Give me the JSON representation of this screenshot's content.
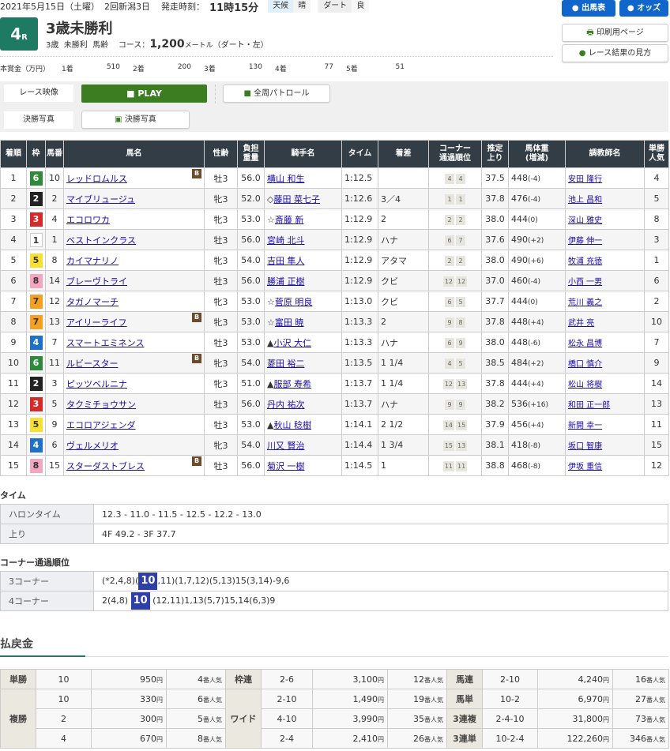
{
  "header": {
    "date": "2021年5月15日（土曜）",
    "meeting": "2回新潟3日",
    "post_label": "発走時刻：",
    "post_time": "11時15分",
    "weather_label": "天候",
    "weather": "晴",
    "surface_label": "ダート",
    "condition": "良",
    "race_no": "4",
    "race_suffix": "R",
    "race_name": "3歳未勝利",
    "age": "3歳",
    "class": "未勝利",
    "weight_rule": "馬齢",
    "course_label": "コース：",
    "distance": "1,200",
    "distance_unit": "メートル",
    "course_detail": "（ダート・左）"
  },
  "prize": {
    "label": "本賞金（万円）",
    "items": [
      {
        "place": "1着",
        "amount": "510"
      },
      {
        "place": "2着",
        "amount": "200"
      },
      {
        "place": "3着",
        "amount": "130"
      },
      {
        "place": "4着",
        "amount": "77"
      },
      {
        "place": "5着",
        "amount": "51"
      }
    ]
  },
  "nav": {
    "entries": "出馬表",
    "odds": "オッズ",
    "print": "印刷用ページ",
    "guide": "レース結果の見方"
  },
  "media": {
    "video_label": "レース映像",
    "play": "PLAY",
    "patrol": "全周パトロール",
    "photo_label": "決勝写真",
    "photo": "決勝写真"
  },
  "colors": {
    "accent": "#1e7a62",
    "header_bg": "#333d45",
    "play": "#3c7d22",
    "nav": "#1166cc",
    "highlight": "#2f3fa8"
  },
  "waku_colors": {
    "1": [
      "#ffffff",
      "#333"
    ],
    "2": [
      "#222222",
      "#fff"
    ],
    "3": [
      "#d42a2a",
      "#fff"
    ],
    "4": [
      "#1e70c8",
      "#fff"
    ],
    "5": [
      "#f8e030",
      "#333"
    ],
    "6": [
      "#2e8a3a",
      "#fff"
    ],
    "7": [
      "#f5a020",
      "#333"
    ],
    "8": [
      "#f2a6c0",
      "#333"
    ]
  },
  "columns": [
    "着順",
    "枠",
    "馬番",
    "馬名",
    "性齢",
    "負担重量",
    "騎手名",
    "タイム",
    "着差",
    "コーナー通過順位",
    "推定上り",
    "馬体重(増減)",
    "調教師名",
    "単勝人気"
  ],
  "results": [
    {
      "pos": "1",
      "waku": "6",
      "num": "10",
      "horse": "レッドロムルス",
      "blinker": "B",
      "sa": "牡3",
      "wt": "56.0",
      "mark": "",
      "jockey": "横山 和生",
      "time": "1:12.5",
      "margin": "",
      "c3": "4",
      "c4": "4",
      "last": "37.5",
      "bw": "448",
      "bwd": "(-4)",
      "trainer": "安田 隆行",
      "pop": "4"
    },
    {
      "pos": "2",
      "waku": "2",
      "num": "2",
      "horse": "マイブリュージュ",
      "blinker": "",
      "sa": "牝3",
      "wt": "52.0",
      "mark": "◇",
      "jockey": "藤田 菜七子",
      "time": "1:12.6",
      "margin": "3／4",
      "c3": "1",
      "c4": "1",
      "last": "37.8",
      "bw": "476",
      "bwd": "(-4)",
      "trainer": "池上 昌和",
      "pop": "5"
    },
    {
      "pos": "3",
      "waku": "3",
      "num": "4",
      "horse": "エコロワカ",
      "blinker": "",
      "sa": "牝3",
      "wt": "53.0",
      "mark": "☆",
      "jockey": "斎藤 新",
      "time": "1:12.9",
      "margin": "2",
      "c3": "2",
      "c4": "2",
      "last": "38.0",
      "bw": "444",
      "bwd": "(0)",
      "trainer": "深山 雅史",
      "pop": "8"
    },
    {
      "pos": "4",
      "waku": "1",
      "num": "1",
      "horse": "ベストインクラス",
      "blinker": "",
      "sa": "牡3",
      "wt": "56.0",
      "mark": "",
      "jockey": "宮崎 北斗",
      "time": "1:12.9",
      "margin": "ハナ",
      "c3": "6",
      "c4": "7",
      "last": "37.6",
      "bw": "490",
      "bwd": "(+2)",
      "trainer": "伊藤 伸一",
      "pop": "3"
    },
    {
      "pos": "5",
      "waku": "5",
      "num": "8",
      "horse": "カイマナリノ",
      "blinker": "",
      "sa": "牝3",
      "wt": "54.0",
      "mark": "",
      "jockey": "吉田 隼人",
      "time": "1:12.9",
      "margin": "アタマ",
      "c3": "2",
      "c4": "2",
      "last": "38.0",
      "bw": "490",
      "bwd": "(+6)",
      "trainer": "牧浦 充徳",
      "pop": "1"
    },
    {
      "pos": "6",
      "waku": "8",
      "num": "14",
      "horse": "ブレーヴトライ",
      "blinker": "",
      "sa": "牡3",
      "wt": "56.0",
      "mark": "",
      "jockey": "勝浦 正樹",
      "time": "1:12.9",
      "margin": "クビ",
      "c3": "12",
      "c4": "12",
      "last": "37.0",
      "bw": "460",
      "bwd": "(-4)",
      "trainer": "小西 一男",
      "pop": "6"
    },
    {
      "pos": "7",
      "waku": "7",
      "num": "12",
      "horse": "タガノマーチ",
      "blinker": "",
      "sa": "牝3",
      "wt": "53.0",
      "mark": "☆",
      "jockey": "菅原 明良",
      "time": "1:13.0",
      "margin": "クビ",
      "c3": "6",
      "c4": "5",
      "last": "37.7",
      "bw": "444",
      "bwd": "(0)",
      "trainer": "荒川 義之",
      "pop": "2"
    },
    {
      "pos": "8",
      "waku": "7",
      "num": "13",
      "horse": "アイリーライフ",
      "blinker": "B",
      "sa": "牝3",
      "wt": "53.0",
      "mark": "☆",
      "jockey": "富田 暁",
      "time": "1:13.3",
      "margin": "2",
      "c3": "9",
      "c4": "8",
      "last": "37.8",
      "bw": "448",
      "bwd": "(+4)",
      "trainer": "武井 亮",
      "pop": "10"
    },
    {
      "pos": "9",
      "waku": "4",
      "num": "7",
      "horse": "スマートエミネンス",
      "blinker": "",
      "sa": "牡3",
      "wt": "53.0",
      "mark": "▲",
      "jockey": "小沢 大仁",
      "time": "1:13.3",
      "margin": "ハナ",
      "c3": "6",
      "c4": "9",
      "last": "38.0",
      "bw": "448",
      "bwd": "(-6)",
      "trainer": "松永 昌博",
      "pop": "7"
    },
    {
      "pos": "10",
      "waku": "6",
      "num": "11",
      "horse": "ルビースター",
      "blinker": "B",
      "sa": "牝3",
      "wt": "54.0",
      "mark": "",
      "jockey": "菱田 裕二",
      "time": "1:13.5",
      "margin": "1 1/4",
      "c3": "4",
      "c4": "5",
      "last": "38.5",
      "bw": "484",
      "bwd": "(+2)",
      "trainer": "橋口 慎介",
      "pop": "9"
    },
    {
      "pos": "11",
      "waku": "2",
      "num": "3",
      "horse": "ピッツベルニナ",
      "blinker": "",
      "sa": "牝3",
      "wt": "51.0",
      "mark": "▲",
      "jockey": "服部 寿希",
      "time": "1:13.7",
      "margin": "1 1/4",
      "c3": "12",
      "c4": "13",
      "last": "37.8",
      "bw": "444",
      "bwd": "(+4)",
      "trainer": "松山 将樹",
      "pop": "14"
    },
    {
      "pos": "12",
      "waku": "3",
      "num": "5",
      "horse": "タクミチョウサン",
      "blinker": "",
      "sa": "牡3",
      "wt": "56.0",
      "mark": "",
      "jockey": "丹内 祐次",
      "time": "1:13.7",
      "margin": "ハナ",
      "c3": "9",
      "c4": "9",
      "last": "38.2",
      "bw": "536",
      "bwd": "(+16)",
      "trainer": "和田 正一郎",
      "pop": "13"
    },
    {
      "pos": "13",
      "waku": "5",
      "num": "9",
      "horse": "エコロアジェンダ",
      "blinker": "",
      "sa": "牡3",
      "wt": "53.0",
      "mark": "▲",
      "jockey": "秋山 稔樹",
      "time": "1:14.1",
      "margin": "2 1/2",
      "c3": "14",
      "c4": "15",
      "last": "37.9",
      "bw": "456",
      "bwd": "(+4)",
      "trainer": "新開 幸一",
      "pop": "11"
    },
    {
      "pos": "14",
      "waku": "4",
      "num": "6",
      "horse": "ヴェルメリオ",
      "blinker": "",
      "sa": "牝3",
      "wt": "54.0",
      "mark": "",
      "jockey": "川又 賢治",
      "time": "1:14.4",
      "margin": "1 3/4",
      "c3": "15",
      "c4": "13",
      "last": "38.1",
      "bw": "418",
      "bwd": "(-8)",
      "trainer": "坂口 智康",
      "pop": "15"
    },
    {
      "pos": "15",
      "waku": "8",
      "num": "15",
      "horse": "スターダストブレス",
      "blinker": "B",
      "sa": "牡3",
      "wt": "56.0",
      "mark": "",
      "jockey": "菊沢 一樹",
      "time": "1:14.5",
      "margin": "1",
      "c3": "11",
      "c4": "11",
      "last": "38.8",
      "bw": "468",
      "bwd": "(-8)",
      "trainer": "伊坂 重信",
      "pop": "12"
    }
  ],
  "time": {
    "title": "タイム",
    "furlong_label": "ハロンタイム",
    "furlong": "12.3 - 11.0 - 11.5 - 12.5 - 12.2 - 13.0",
    "last_label": "上り",
    "last": "4F 49.2 - 3F 37.7"
  },
  "corner": {
    "title": "コーナー通過順位",
    "c3_label": "3コーナー",
    "c3_pre": "(*2,4,8)(",
    "c3_hl": "10",
    "c3_post": ",11)(1,7,12)(5,13)15(3,14)-9,6",
    "c4_label": "4コーナー",
    "c4_pre": "2(4,8)",
    "c4_hl": "10",
    "c4_post": "(12,11)1,13(5,7)15,14(6,3)9"
  },
  "payout": {
    "title": "払戻金",
    "yen": "円",
    "pop_suffix": "番人気",
    "rows": [
      [
        {
          "label": "単勝",
          "combo": "10",
          "amount": "950",
          "pop": "4"
        },
        {
          "label": "枠連",
          "combo": "2-6",
          "amount": "3,100",
          "pop": "12"
        },
        {
          "label": "馬連",
          "combo": "2-10",
          "amount": "4,240",
          "pop": "16"
        }
      ],
      [
        {
          "label": "複勝",
          "combo": "10",
          "amount": "330",
          "pop": "6"
        },
        {
          "label": "ワイド",
          "combo": "2-10",
          "amount": "1,490",
          "pop": "19"
        },
        {
          "label": "馬単",
          "combo": "10-2",
          "amount": "6,970",
          "pop": "27"
        }
      ],
      [
        {
          "label": "",
          "combo": "2",
          "amount": "300",
          "pop": "5"
        },
        {
          "label": "",
          "combo": "4-10",
          "amount": "3,990",
          "pop": "35"
        },
        {
          "label": "3連複",
          "combo": "2-4-10",
          "amount": "31,800",
          "pop": "73"
        }
      ],
      [
        {
          "label": "",
          "combo": "4",
          "amount": "670",
          "pop": "8"
        },
        {
          "label": "",
          "combo": "2-4",
          "amount": "2,410",
          "pop": "26"
        },
        {
          "label": "3連単",
          "combo": "10-2-4",
          "amount": "122,260",
          "pop": "346"
        }
      ]
    ]
  }
}
